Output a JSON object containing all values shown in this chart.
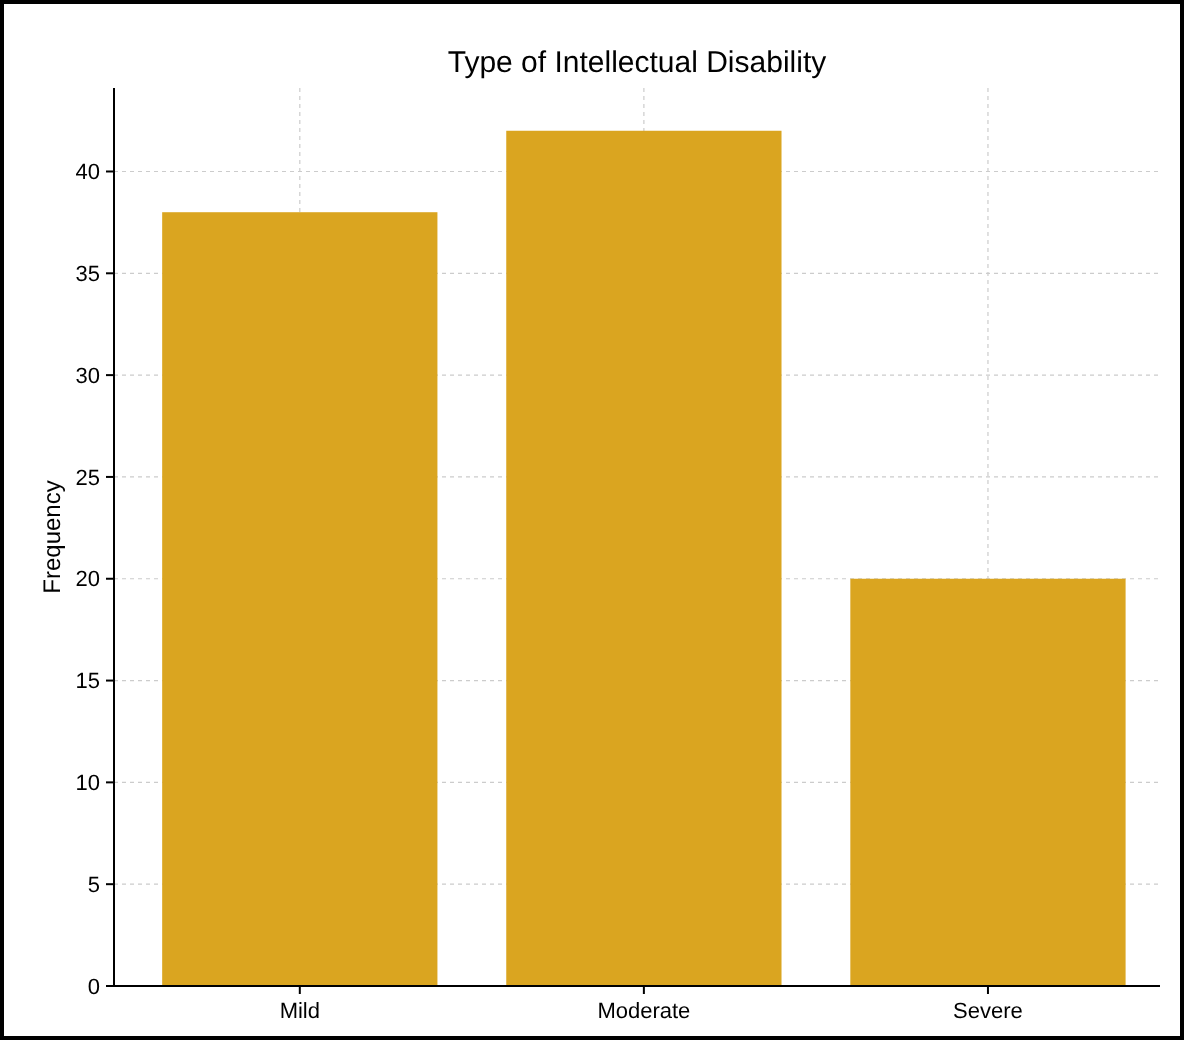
{
  "chart_data": {
    "type": "bar",
    "title": "Type of Intellectual Disability",
    "ylabel": "Frequency",
    "categories": [
      "Mild",
      "Moderate",
      "Severe"
    ],
    "values": [
      38,
      42,
      20
    ],
    "color": "#daa520",
    "ylim": [
      0,
      44.1
    ],
    "yticks": [
      0,
      5,
      10,
      15,
      20,
      25,
      30,
      35,
      40
    ],
    "grid": true
  }
}
